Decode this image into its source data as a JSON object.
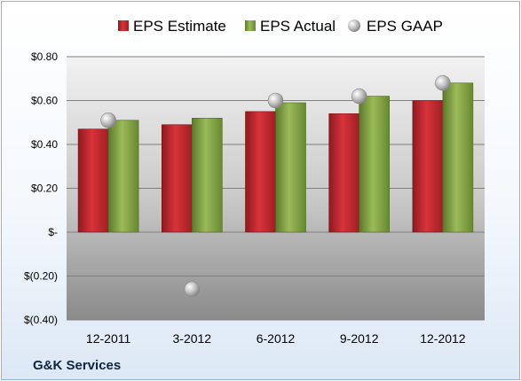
{
  "chart_data": {
    "type": "bar",
    "categories": [
      "12-2011",
      "3-2012",
      "6-2012",
      "9-2012",
      "12-2012"
    ],
    "series": [
      {
        "name": "EPS Estimate",
        "kind": "bar",
        "color": "#c0262b",
        "values": [
          0.47,
          0.49,
          0.55,
          0.54,
          0.6
        ]
      },
      {
        "name": "EPS Actual",
        "kind": "bar",
        "color": "#77933c",
        "values": [
          0.51,
          0.52,
          0.59,
          0.62,
          0.68
        ]
      },
      {
        "name": "EPS GAAP",
        "kind": "marker",
        "color": "#b0b0b0",
        "values": [
          0.51,
          -0.26,
          0.6,
          0.62,
          0.68
        ]
      }
    ],
    "ylim": [
      -0.4,
      0.8
    ],
    "yticks": [
      {
        "value": 0.8,
        "label": "$0.80"
      },
      {
        "value": 0.6,
        "label": "$0.60"
      },
      {
        "value": 0.4,
        "label": "$0.40"
      },
      {
        "value": 0.2,
        "label": "$0.20"
      },
      {
        "value": 0.0,
        "label": "$-"
      },
      {
        "value": -0.2,
        "label": "$(0.20)"
      },
      {
        "value": -0.4,
        "label": "$(0.40)"
      }
    ],
    "legend_position": "top",
    "grid": true,
    "company": "G&K Services"
  }
}
